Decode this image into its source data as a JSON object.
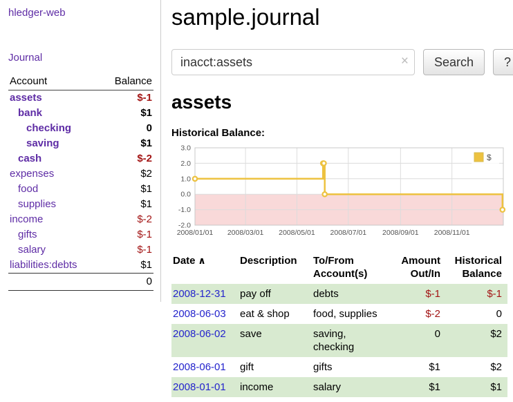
{
  "theme": {
    "purple": "#5e2ca5",
    "link_blue": "#2424cc",
    "negative_red": "#a31515",
    "row_green": "#d8ead0",
    "chart_gold": "#edc240",
    "chart_negative_bg": "#f9d9d9"
  },
  "app": {
    "title": "hledger-web",
    "nav_journal": "Journal"
  },
  "sidebar": {
    "columns": [
      "Account",
      "Balance"
    ],
    "accounts": [
      {
        "name": "assets",
        "balance": "$-1",
        "indent": 0,
        "bold": true,
        "name_negative": true,
        "balance_negative": true
      },
      {
        "name": "bank",
        "balance": "$1",
        "indent": 1,
        "bold": true,
        "name_negative": false,
        "balance_negative": false
      },
      {
        "name": "checking",
        "balance": "0",
        "indent": 2,
        "bold": true,
        "name_negative": false,
        "balance_negative": false
      },
      {
        "name": "saving",
        "balance": "$1",
        "indent": 2,
        "bold": true,
        "name_negative": false,
        "balance_negative": false
      },
      {
        "name": "cash",
        "balance": "$-2",
        "indent": 1,
        "bold": true,
        "name_negative": true,
        "balance_negative": true
      },
      {
        "name": "expenses",
        "balance": "$2",
        "indent": 0,
        "bold": false,
        "name_negative": false,
        "balance_negative": false
      },
      {
        "name": "food",
        "balance": "$1",
        "indent": 1,
        "bold": false,
        "name_negative": false,
        "balance_negative": false
      },
      {
        "name": "supplies",
        "balance": "$1",
        "indent": 1,
        "bold": false,
        "name_negative": false,
        "balance_negative": false
      },
      {
        "name": "income",
        "balance": "$-2",
        "indent": 0,
        "bold": false,
        "name_negative": false,
        "balance_negative": true
      },
      {
        "name": "gifts",
        "balance": "$-1",
        "indent": 1,
        "bold": false,
        "name_negative": false,
        "balance_negative": true
      },
      {
        "name": "salary",
        "balance": "$-1",
        "indent": 1,
        "bold": false,
        "name_negative": false,
        "balance_negative": true
      },
      {
        "name": "liabilities:debts",
        "balance": "$1",
        "indent": 0,
        "bold": false,
        "name_negative": false,
        "balance_negative": false
      }
    ],
    "total": "0"
  },
  "main": {
    "title": "sample.journal",
    "search": {
      "value": "inacct:assets",
      "clear_icon": "×",
      "button_label": "Search",
      "help_label": "?"
    },
    "account_heading": "assets",
    "chart_label": "Historical Balance:"
  },
  "chart_data": {
    "type": "line",
    "line_style": "step-after",
    "x_unit": "days since 2008-01-01",
    "series": [
      {
        "name": "$",
        "color": "#edc240",
        "points": [
          [
            0,
            1
          ],
          [
            152,
            2
          ],
          [
            153,
            2
          ],
          [
            154,
            0
          ],
          [
            365,
            -1
          ]
        ],
        "point_dates": [
          "2008-01-01",
          "2008-06-01",
          "2008-06-02",
          "2008-06-03",
          "2008-12-31"
        ]
      }
    ],
    "xlim": [
      0,
      366
    ],
    "ylim": [
      -2,
      3
    ],
    "yticks": [
      {
        "v": 3,
        "label": "3.0"
      },
      {
        "v": 2,
        "label": "2.0"
      },
      {
        "v": 1,
        "label": "1.0"
      },
      {
        "v": 0,
        "label": "0.0"
      },
      {
        "v": -1,
        "label": "-1.0"
      },
      {
        "v": -2,
        "label": "-2.0"
      }
    ],
    "xticks": [
      {
        "v": 0,
        "label": "2008/01/01"
      },
      {
        "v": 60,
        "label": "2008/03/01"
      },
      {
        "v": 121,
        "label": "2008/05/01"
      },
      {
        "v": 182,
        "label": "2008/07/01"
      },
      {
        "v": 244,
        "label": "2008/09/01"
      },
      {
        "v": 305,
        "label": "2008/11/01"
      }
    ],
    "negative_region": true,
    "negative_region_color": "#f9d9d9",
    "legend": {
      "position": "top-right",
      "label": "$",
      "swatch_color": "#edc240"
    },
    "grid": true
  },
  "register": {
    "sort_asc_icon": "∧",
    "columns": [
      {
        "id": "date",
        "label": "Date",
        "align": "left",
        "sorted": true
      },
      {
        "id": "description",
        "label": "Description",
        "align": "left",
        "sorted": false
      },
      {
        "id": "accounts",
        "label": "To/From Account(s)",
        "align": "left",
        "sorted": false
      },
      {
        "id": "amount",
        "label": "Amount Out/In",
        "align": "right",
        "sorted": false
      },
      {
        "id": "balance",
        "label": "Historical Balance",
        "align": "right",
        "sorted": false
      }
    ],
    "rows": [
      {
        "date": "2008-12-31",
        "description": "pay off",
        "accounts": "debts",
        "amount": "$-1",
        "balance": "$-1"
      },
      {
        "date": "2008-06-03",
        "description": "eat & shop",
        "accounts": "food, supplies",
        "amount": "$-2",
        "balance": "0"
      },
      {
        "date": "2008-06-02",
        "description": "save",
        "accounts": "saving, checking",
        "amount": "0",
        "balance": "$2"
      },
      {
        "date": "2008-06-01",
        "description": "gift",
        "accounts": "gifts",
        "amount": "$1",
        "balance": "$2"
      },
      {
        "date": "2008-01-01",
        "description": "income",
        "accounts": "salary",
        "amount": "$1",
        "balance": "$1"
      }
    ]
  }
}
